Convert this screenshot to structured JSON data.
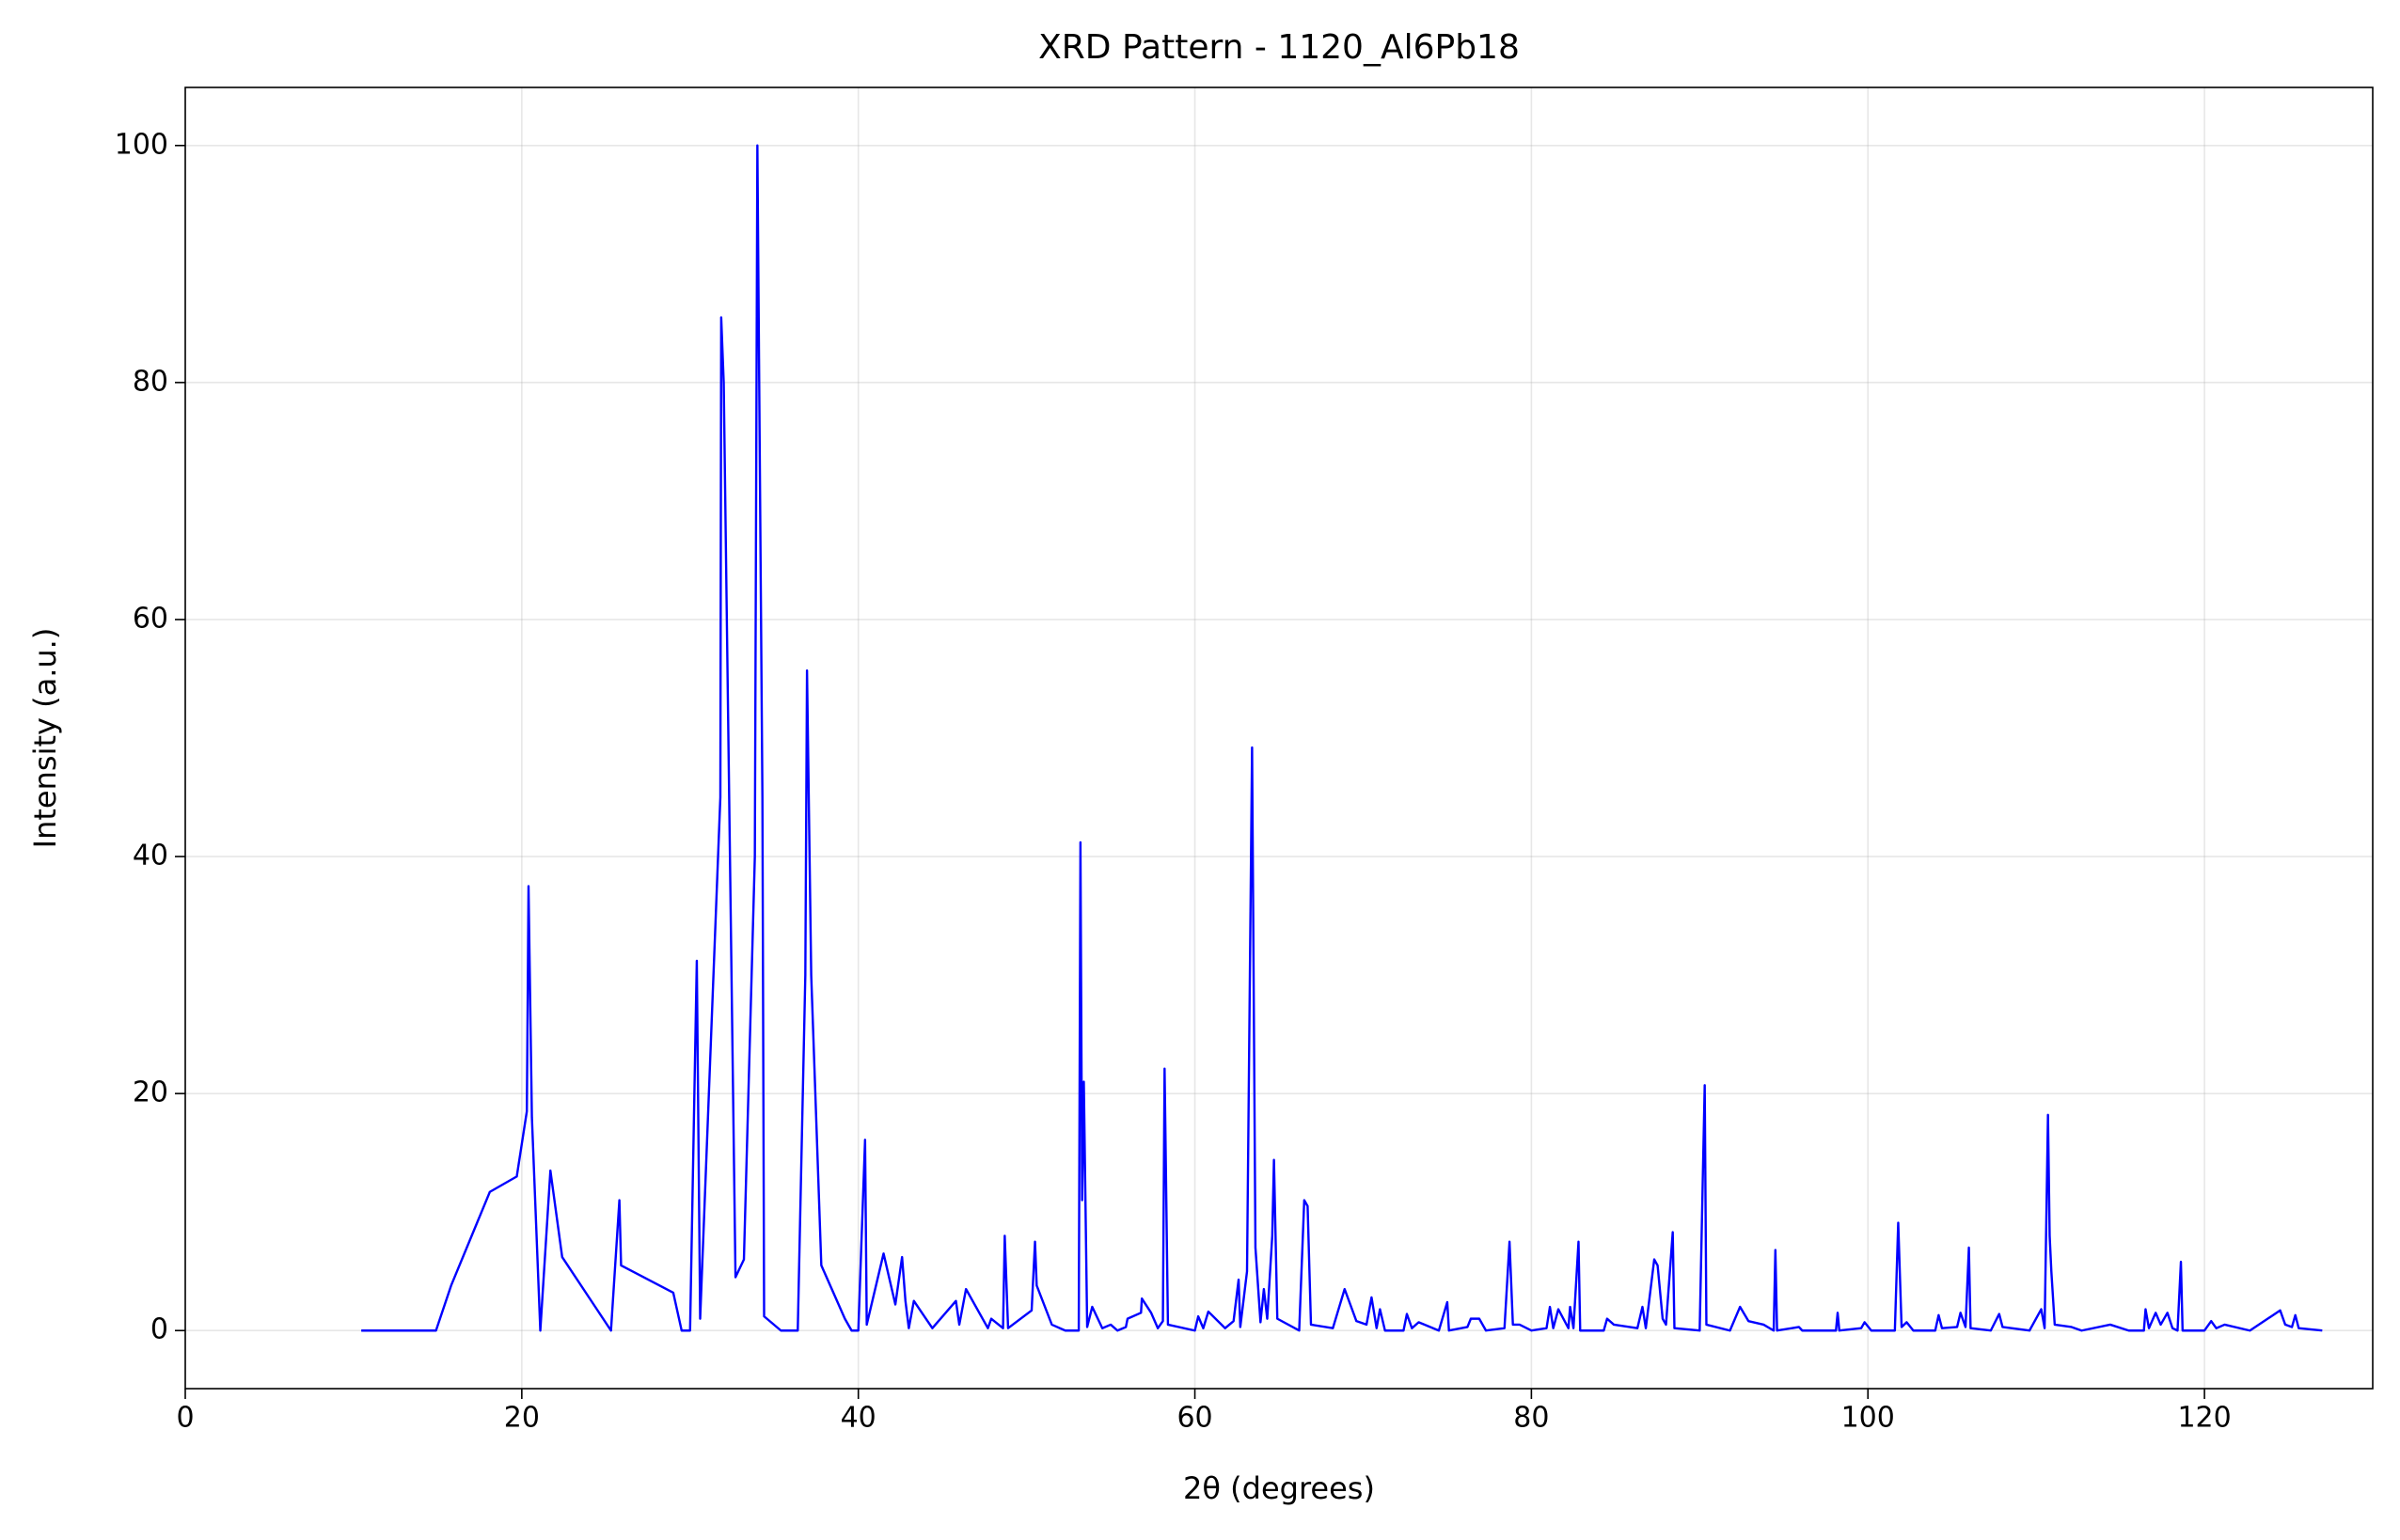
{
  "chart_data": {
    "type": "line",
    "title": "XRD Pattern - 1120_Al6Pb18",
    "xlabel": "2θ (degrees)",
    "ylabel": "Intensity (a.u.)",
    "color": "#0000ff",
    "grid": true,
    "xlim": [
      0,
      130
    ],
    "ylim": [
      -4.9,
      104.9
    ],
    "xticks": [
      0,
      20,
      40,
      60,
      80,
      100,
      120
    ],
    "yticks": [
      0,
      20,
      40,
      60,
      80,
      100
    ],
    "x": [
      10.46,
      14.9,
      15.8,
      18.1,
      19.7,
      20.3,
      20.4,
      20.6,
      21.1,
      21.7,
      22.4,
      25.3,
      25.8,
      25.9,
      29.0,
      29.5,
      30.0,
      30.4,
      30.6,
      31.8,
      31.85,
      32.0,
      32.7,
      33.2,
      33.85,
      34.0,
      34.3,
      34.4,
      35.4,
      36.4,
      36.85,
      36.95,
      37.2,
      37.8,
      39.2,
      39.6,
      40.0,
      40.4,
      40.5,
      41.5,
      42.2,
      42.6,
      42.8,
      43.0,
      43.3,
      44.4,
      45.8,
      46.0,
      46.4,
      47.7,
      47.9,
      48.6,
      48.7,
      48.9,
      50.3,
      50.5,
      50.6,
      51.5,
      52.3,
      53.1,
      53.2,
      53.3,
      53.4,
      53.6,
      53.9,
      54.5,
      55.0,
      55.4,
      55.9,
      56.0,
      56.8,
      56.85,
      57.4,
      57.8,
      58.1,
      58.2,
      58.4,
      60.0,
      60.2,
      60.5,
      60.8,
      61.8,
      62.3,
      62.6,
      62.7,
      63.1,
      63.4,
      63.6,
      63.9,
      64.1,
      64.3,
      64.6,
      64.7,
      64.9,
      66.2,
      66.5,
      66.7,
      66.9,
      68.2,
      68.9,
      69.6,
      70.2,
      70.5,
      70.8,
      71.0,
      71.3,
      72.4,
      72.6,
      72.9,
      73.3,
      74.5,
      75.0,
      75.1,
      76.2,
      76.4,
      76.9,
      77.3,
      78.4,
      78.7,
      78.9,
      79.3,
      80.0,
      80.9,
      81.1,
      81.3,
      81.6,
      82.2,
      82.3,
      82.5,
      82.8,
      82.9,
      84.3,
      84.5,
      84.9,
      86.3,
      86.6,
      86.8,
      87.3,
      87.5,
      87.8,
      88.0,
      88.4,
      88.5,
      90.0,
      90.3,
      90.4,
      91.8,
      92.4,
      92.9,
      93.8,
      94.4,
      94.5,
      94.6,
      95.9,
      96.1,
      98.1,
      98.2,
      98.3,
      99.6,
      99.8,
      100.2,
      101.6,
      101.8,
      102.0,
      102.3,
      102.7,
      104.0,
      104.2,
      104.4,
      105.3,
      105.5,
      105.8,
      106.0,
      106.1,
      107.3,
      107.8,
      108.0,
      109.6,
      110.3,
      110.5,
      110.7,
      110.8,
      110.9,
      111.1,
      112.1,
      112.7,
      114.4,
      115.5,
      116.4,
      116.5,
      116.7,
      117.1,
      117.4,
      117.8,
      118.1,
      118.4,
      118.6,
      118.7,
      120.0,
      120.4,
      120.7,
      121.2,
      122.7,
      124.5,
      124.8,
      125.2,
      125.4,
      125.6,
      127.0
    ],
    "values": [
      0,
      0,
      3.8,
      11.7,
      13.0,
      18.5,
      37.5,
      18,
      0,
      13.5,
      6.2,
      0,
      11,
      5.5,
      3.2,
      0,
      0,
      31.2,
      1,
      45,
      85.5,
      80,
      4.5,
      6,
      40,
      100,
      45,
      1.2,
      0,
      0,
      30,
      55.7,
      30,
      5.5,
      1,
      0,
      0,
      16.1,
      0.5,
      6.5,
      2.2,
      6.2,
      2.5,
      0.2,
      2.5,
      0.2,
      2.5,
      0.5,
      3.5,
      0.2,
      1,
      0.2,
      8,
      0.2,
      1.7,
      7.5,
      3.8,
      0.5,
      0,
      0,
      41.2,
      11,
      21,
      0.3,
      2,
      0.2,
      0.5,
      0,
      0.3,
      1,
      1.5,
      2.7,
      1.5,
      0.2,
      0.8,
      22.1,
      0.5,
      0,
      1.2,
      0.2,
      1.6,
      0.2,
      0.8,
      4.3,
      0.3,
      5,
      49.2,
      7,
      0.7,
      3.5,
      1,
      8,
      14.4,
      1,
      0,
      11,
      10.5,
      0.5,
      0.2,
      3.5,
      0.8,
      0.5,
      2.8,
      0.2,
      1.8,
      0,
      0,
      1.4,
      0.2,
      0.7,
      0,
      2.4,
      0,
      0.3,
      1,
      1,
      0,
      0.2,
      7.5,
      0.5,
      0.5,
      0,
      0.2,
      2,
      0.2,
      1.8,
      0.2,
      2,
      0.2,
      7.5,
      0,
      0,
      1,
      0.5,
      0.2,
      2,
      0.2,
      6,
      5.5,
      1,
      0.5,
      8.3,
      0.2,
      0,
      20.7,
      0.5,
      0,
      2,
      0.8,
      0.5,
      0,
      6.8,
      0,
      0.3,
      0,
      0,
      1.5,
      0,
      0.2,
      0.7,
      0,
      0,
      9.1,
      0.3,
      0.7,
      0,
      0,
      1.3,
      0.2,
      0.3,
      1.5,
      0.3,
      7,
      0.2,
      0,
      1.4,
      0.3,
      0,
      1.8,
      0.2,
      18.2,
      8,
      5,
      0.5,
      0.3,
      0,
      0.5,
      0,
      0,
      1.8,
      0.2,
      1.5,
      0.5,
      1.5,
      0.2,
      0,
      5.8,
      0,
      0,
      0.8,
      0.2,
      0.5,
      0,
      1.7,
      0.5,
      0.3,
      1.3,
      0.2,
      0
    ]
  }
}
